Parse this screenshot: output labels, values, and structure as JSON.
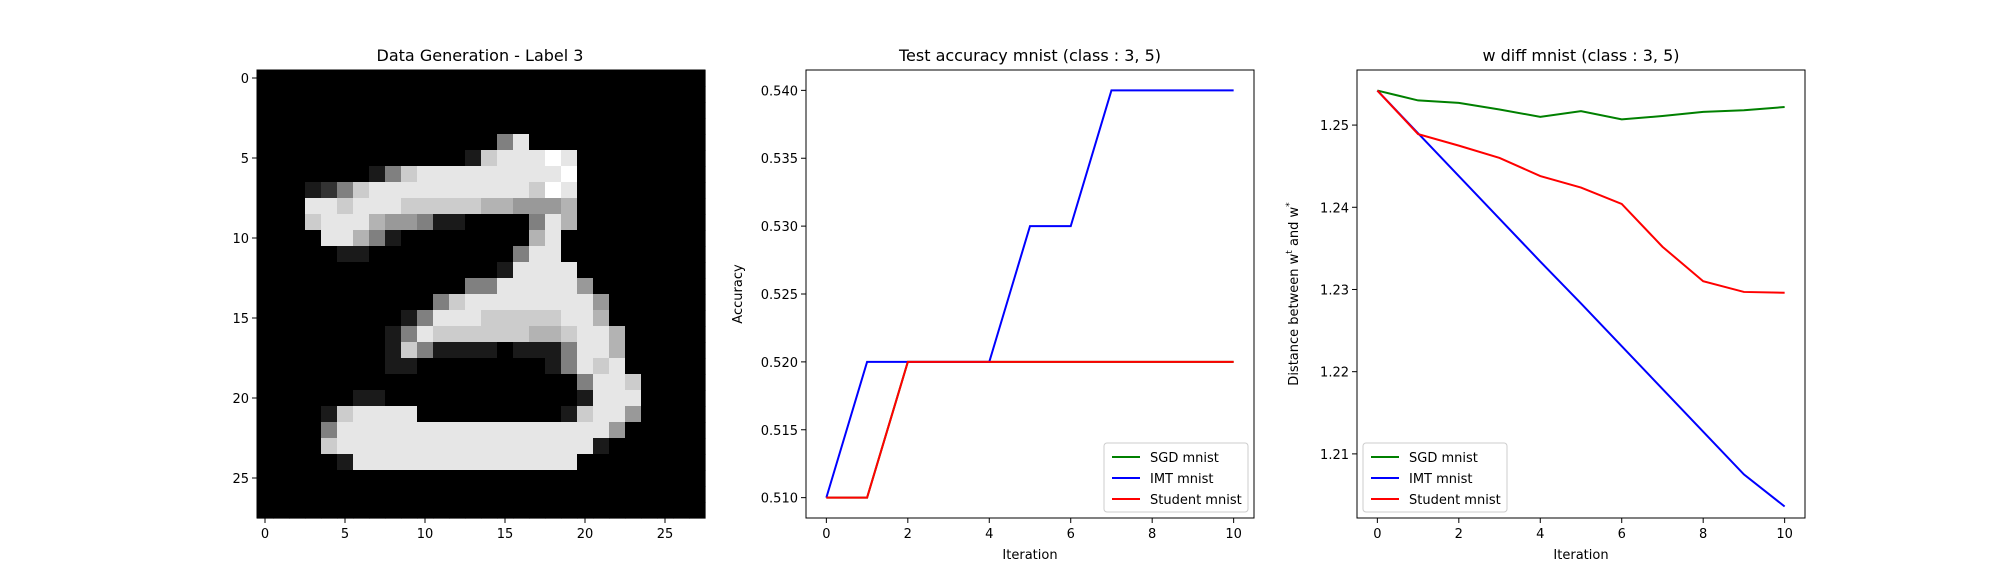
{
  "colors": {
    "sgd": "#008000",
    "imt": "#0000ff",
    "student": "#ff0000"
  },
  "chart_data": [
    {
      "type": "heatmap",
      "title": "Data Generation - Label 3",
      "colormap": "gray",
      "xlim": [
        -0.5,
        27.5
      ],
      "ylim": [
        27.5,
        -0.5
      ],
      "xticks": [
        0,
        5,
        10,
        15,
        20,
        25
      ],
      "xtick_labels": [
        "0",
        "5",
        "10",
        "15",
        "20",
        "25"
      ],
      "yticks": [
        0,
        5,
        10,
        15,
        20,
        25
      ],
      "ytick_labels": [
        "0",
        "5",
        "10",
        "15",
        "20",
        "25"
      ],
      "rows": [
        "0000000000000000000000000000",
        "0000000000000000000000000000",
        "0000000000000000000000000000",
        "0000000000000000000000000000",
        "0000000000000005900000000000",
        "000000000000018999a900000000",
        "0000000158999999999a00000000",
        "000125899999999998a900000000",
        "0009989998888877666700000000",
        "0008999766511000059700000000",
        "0000997510000000079000000000",
        "0000011000000000599000000000",
        "0000000000000001999900000000",
        "0000000000000559999960000000",
        "0000000000058999999996000000",
        "0000000001599988888997000000",
        "0000000015988888877899700000",
        "0000000018511110111599700000",
        "0000000011000000001598900000",
        "0000000000000000000059980000",
        "0000001100000000000019990000",
        "0000189999000000000189960000",
        "0000599999999999999999600000",
        "0000899999999999999991000000",
        "0000019999999999999900000000",
        "0000000000000000000000000000",
        "0000000000000000000000000000",
        "0000000000000000000000000000"
      ]
    },
    {
      "type": "line",
      "title": "Test accuracy mnist (class : 3, 5)",
      "xlabel": "Iteration",
      "ylabel": "Accuracy",
      "xlim": [
        -0.5,
        10.5
      ],
      "ylim": [
        0.5085,
        0.5415
      ],
      "xticks": [
        0,
        2,
        4,
        6,
        8,
        10
      ],
      "xtick_labels": [
        "0",
        "2",
        "4",
        "6",
        "8",
        "10"
      ],
      "yticks": [
        0.51,
        0.515,
        0.52,
        0.525,
        0.53,
        0.535,
        0.54
      ],
      "ytick_labels": [
        "0.510",
        "0.515",
        "0.520",
        "0.525",
        "0.530",
        "0.535",
        "0.540"
      ],
      "legend": "lower-right",
      "x": [
        0,
        1,
        2,
        3,
        4,
        5,
        6,
        7,
        8,
        9,
        10
      ],
      "series": [
        {
          "name": "SGD mnist",
          "color": "#008000",
          "values": [
            0.51,
            0.51,
            0.52,
            0.52,
            0.52,
            0.52,
            0.52,
            0.52,
            0.52,
            0.52,
            0.52
          ]
        },
        {
          "name": "IMT mnist",
          "color": "#0000ff",
          "values": [
            0.51,
            0.52,
            0.52,
            0.52,
            0.52,
            0.53,
            0.53,
            0.54,
            0.54,
            0.54,
            0.54
          ]
        },
        {
          "name": "Student mnist",
          "color": "#ff0000",
          "values": [
            0.51,
            0.51,
            0.52,
            0.52,
            0.52,
            0.52,
            0.52,
            0.52,
            0.52,
            0.52,
            0.52
          ]
        }
      ]
    },
    {
      "type": "line",
      "title": "w diff mnist (class : 3, 5)",
      "xlabel": "Iteration",
      "ylabel": "Distance between w",
      "ylabel_sup": "t",
      "ylabel_mid": " and w",
      "ylabel_sup2": "*",
      "xlim": [
        -0.5,
        10.5
      ],
      "ylim": [
        1.2022,
        1.2567
      ],
      "xticks": [
        0,
        2,
        4,
        6,
        8,
        10
      ],
      "xtick_labels": [
        "0",
        "2",
        "4",
        "6",
        "8",
        "10"
      ],
      "yticks": [
        1.21,
        1.22,
        1.23,
        1.24,
        1.25
      ],
      "ytick_labels": [
        "1.21",
        "1.22",
        "1.23",
        "1.24",
        "1.25"
      ],
      "legend": "lower-left",
      "x": [
        0,
        1,
        2,
        3,
        4,
        5,
        6,
        7,
        8,
        9,
        10
      ],
      "series": [
        {
          "name": "SGD mnist",
          "color": "#008000",
          "values": [
            1.2542,
            1.253,
            1.2527,
            1.2519,
            1.251,
            1.2517,
            1.2507,
            1.2511,
            1.2516,
            1.2518,
            1.2522
          ]
        },
        {
          "name": "IMT mnist",
          "color": "#0000ff",
          "values": [
            1.2542,
            1.249,
            1.2438,
            1.2386,
            1.2334,
            1.2283,
            1.2231,
            1.2179,
            1.2127,
            1.2075,
            1.2036
          ]
        },
        {
          "name": "Student mnist",
          "color": "#ff0000",
          "values": [
            1.2542,
            1.2489,
            1.2475,
            1.246,
            1.2438,
            1.2424,
            1.2404,
            1.2352,
            1.231,
            1.2297,
            1.2296
          ]
        }
      ]
    }
  ]
}
